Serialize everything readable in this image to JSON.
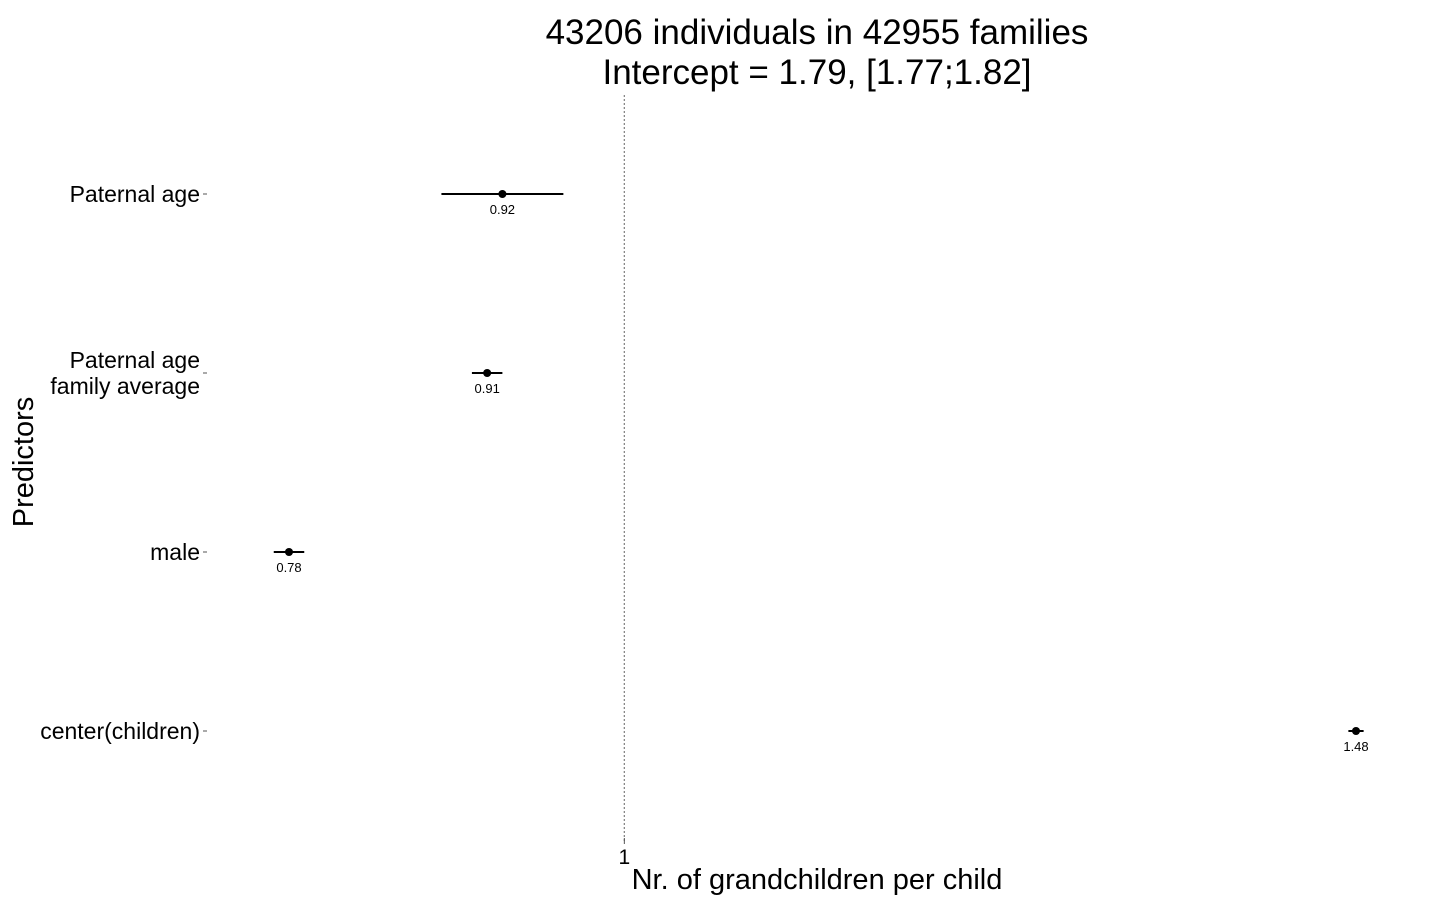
{
  "chart_data": {
    "type": "forest",
    "title": [
      "43206 individuals in 42955 families",
      "Intercept = 1.79, [1.77;1.82]"
    ],
    "xlabel": "Nr. of grandchildren per child",
    "ylabel": "Predictors",
    "reference_line": 1,
    "x_ticks": [
      {
        "value": 1,
        "label": "1"
      }
    ],
    "xlim": [
      0.74,
      1.52
    ],
    "grid": false,
    "predictors": [
      {
        "label": [
          "Paternal age"
        ],
        "estimate": 0.92,
        "estimate_label": "0.92",
        "ci": [
          0.88,
          0.96
        ]
      },
      {
        "label": [
          "Paternal age",
          "family average"
        ],
        "estimate": 0.91,
        "estimate_label": "0.91",
        "ci": [
          0.9,
          0.92
        ]
      },
      {
        "label": [
          "male"
        ],
        "estimate": 0.78,
        "estimate_label": "0.78",
        "ci": [
          0.77,
          0.79
        ]
      },
      {
        "label": [
          "center(children)"
        ],
        "estimate": 1.48,
        "estimate_label": "1.48",
        "ci": [
          1.475,
          1.485
        ]
      }
    ]
  }
}
